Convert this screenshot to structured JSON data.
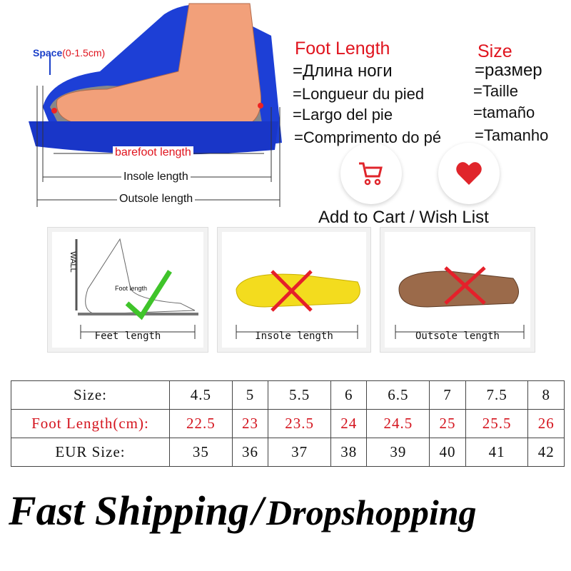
{
  "diagram": {
    "space_label": "Space",
    "space_range": "(0-1.5cm)",
    "barefoot": "barefoot length",
    "insole": "Insole length",
    "outsole": "Outsole length"
  },
  "translations": {
    "foot_length_title": "Foot Length",
    "foot_length": [
      "=Длина ноги",
      "=Longueur du pied",
      "=Largo del pie",
      "=Comprimento do pé"
    ],
    "size_title": "Size",
    "size": [
      "=размер",
      "=Taille",
      "=tamaño",
      "=Tamanho"
    ]
  },
  "actions": {
    "label": "Add to Cart / Wish List",
    "cart_icon": "cart-icon",
    "heart_icon": "heart-icon",
    "accent": "#e0252b"
  },
  "panels": [
    {
      "label": "Feet length",
      "wall": "WALL",
      "inner": "Foot length",
      "mark": "check"
    },
    {
      "label": "Insole length",
      "mark": "cross"
    },
    {
      "label": "Outsole length",
      "mark": "cross"
    }
  ],
  "size_table": {
    "rows": [
      {
        "label": "Size:",
        "values": [
          "4.5",
          "5",
          "5.5",
          "6",
          "6.5",
          "7",
          "7.5",
          "8"
        ]
      },
      {
        "label": "Foot Length(cm):",
        "values": [
          "22.5",
          "23",
          "23.5",
          "24",
          "24.5",
          "25",
          "25.5",
          "26"
        ]
      },
      {
        "label": "EUR Size:",
        "values": [
          "35",
          "36",
          "37",
          "38",
          "39",
          "40",
          "41",
          "42"
        ]
      }
    ]
  },
  "footer": {
    "part1": "Fast Shipping",
    "sep": "/",
    "part2": "Dropshopping"
  }
}
